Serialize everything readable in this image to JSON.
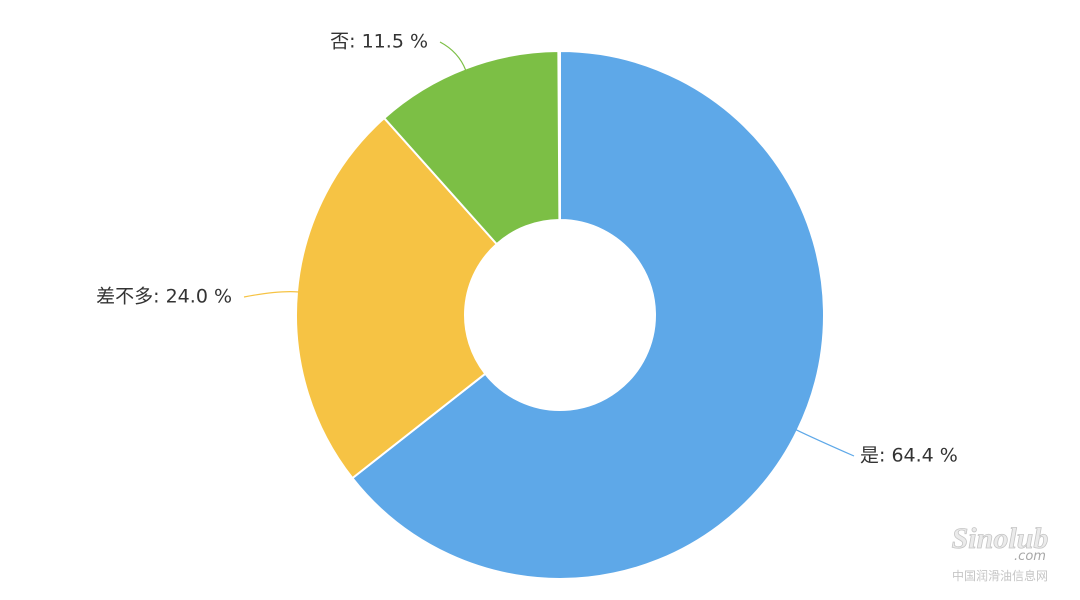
{
  "chart_data": {
    "type": "donut",
    "values": [
      64.4,
      24.0,
      11.5
    ],
    "value_labels": [
      "是: 64.4 %",
      "差不多: 24.0 %",
      "否: 11.5 %"
    ],
    "colors": [
      "#5ea8e8",
      "#f6c344",
      "#7cbf45"
    ]
  },
  "watermark": {
    "brand": "Sinolub",
    "domain": ".com",
    "site": "中国润滑油信息网"
  }
}
